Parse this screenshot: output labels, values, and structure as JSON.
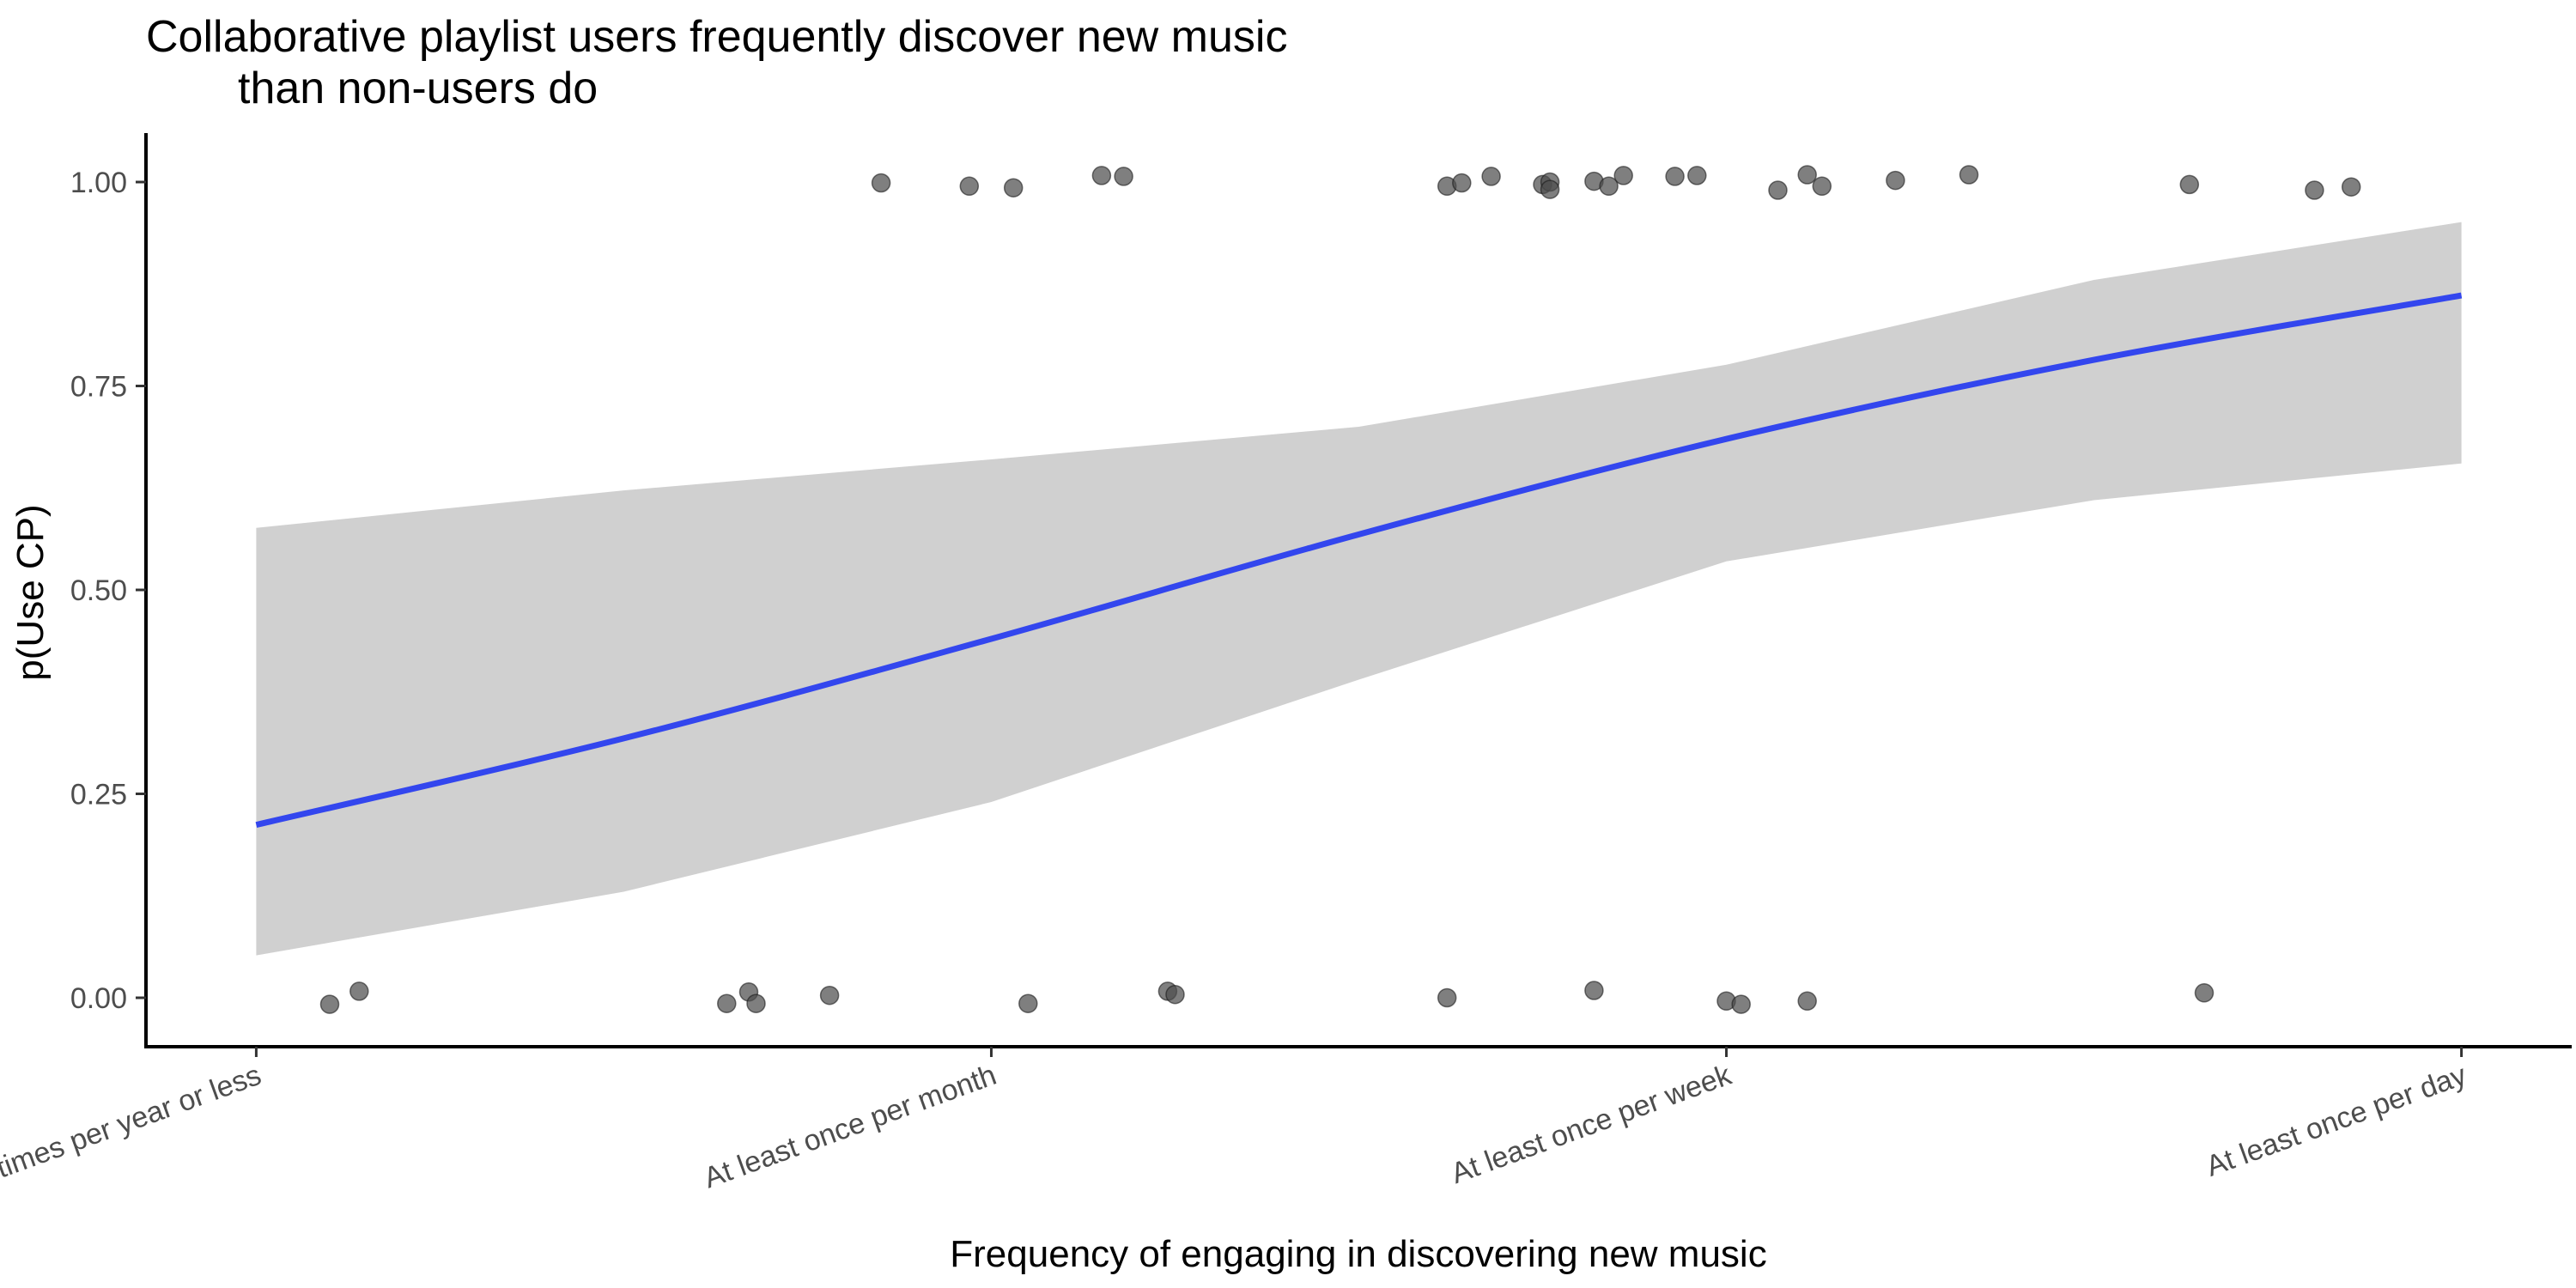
{
  "chart_data": {
    "type": "scatter",
    "title_lines": [
      "Collaborative playlist users frequently discover new music",
      "than non-users do"
    ],
    "xlabel": "Frequency of engaging in discovering new music",
    "ylabel": "p(Use CP)",
    "x_categories": [
      "A few times per year or less",
      "At least once per month",
      "At least once per week",
      "At least once per day"
    ],
    "x_range": [
      0.85,
      4.15
    ],
    "ylim": [
      -0.06,
      1.06
    ],
    "y_ticks": [
      0.0,
      0.25,
      0.5,
      0.75,
      1.0
    ],
    "y_tick_labels": [
      "0.00",
      "0.25",
      "0.50",
      "0.75",
      "1.00"
    ],
    "grid": false,
    "legend": "none",
    "points": [
      {
        "x": 1.1,
        "y": -0.008
      },
      {
        "x": 1.14,
        "y": 0.008
      },
      {
        "x": 1.64,
        "y": -0.007
      },
      {
        "x": 1.67,
        "y": 0.007
      },
      {
        "x": 1.68,
        "y": -0.007
      },
      {
        "x": 1.78,
        "y": 0.003
      },
      {
        "x": 2.05,
        "y": -0.007
      },
      {
        "x": 2.24,
        "y": 0.008
      },
      {
        "x": 2.25,
        "y": 0.004
      },
      {
        "x": 2.62,
        "y": 0.0
      },
      {
        "x": 2.82,
        "y": 0.009
      },
      {
        "x": 3.0,
        "y": -0.004
      },
      {
        "x": 3.02,
        "y": -0.008
      },
      {
        "x": 3.11,
        "y": -0.004
      },
      {
        "x": 3.65,
        "y": 0.006
      },
      {
        "x": 1.85,
        "y": 0.999
      },
      {
        "x": 1.97,
        "y": 0.995
      },
      {
        "x": 2.03,
        "y": 0.993
      },
      {
        "x": 2.15,
        "y": 1.008
      },
      {
        "x": 2.18,
        "y": 1.007
      },
      {
        "x": 2.62,
        "y": 0.995
      },
      {
        "x": 2.64,
        "y": 0.999
      },
      {
        "x": 2.68,
        "y": 1.007
      },
      {
        "x": 2.75,
        "y": 0.997
      },
      {
        "x": 2.76,
        "y": 1.0
      },
      {
        "x": 2.76,
        "y": 0.991
      },
      {
        "x": 2.82,
        "y": 1.001
      },
      {
        "x": 2.84,
        "y": 0.995
      },
      {
        "x": 2.86,
        "y": 1.008
      },
      {
        "x": 2.93,
        "y": 1.007
      },
      {
        "x": 2.96,
        "y": 1.008
      },
      {
        "x": 3.07,
        "y": 0.99
      },
      {
        "x": 3.11,
        "y": 1.009
      },
      {
        "x": 3.13,
        "y": 0.995
      },
      {
        "x": 3.23,
        "y": 1.002
      },
      {
        "x": 3.33,
        "y": 1.009
      },
      {
        "x": 3.63,
        "y": 0.997
      },
      {
        "x": 3.8,
        "y": 0.99
      },
      {
        "x": 3.85,
        "y": 0.994
      }
    ],
    "fit_line": {
      "x": [
        1.0,
        1.5,
        2.0,
        2.5,
        3.0,
        3.5,
        4.0
      ],
      "y": [
        0.212,
        0.318,
        0.44,
        0.568,
        0.685,
        0.782,
        0.861
      ]
    },
    "confidence_band": {
      "x": [
        1.0,
        1.5,
        2.0,
        2.5,
        3.0,
        3.5,
        4.0
      ],
      "lower": [
        0.052,
        0.13,
        0.24,
        0.39,
        0.535,
        0.61,
        0.655
      ],
      "upper": [
        0.576,
        0.622,
        0.66,
        0.7,
        0.776,
        0.88,
        0.951
      ]
    },
    "colors": {
      "points": "#4d4d4d",
      "fit_line": "#3346ee",
      "band": "#d0d0d0"
    }
  }
}
